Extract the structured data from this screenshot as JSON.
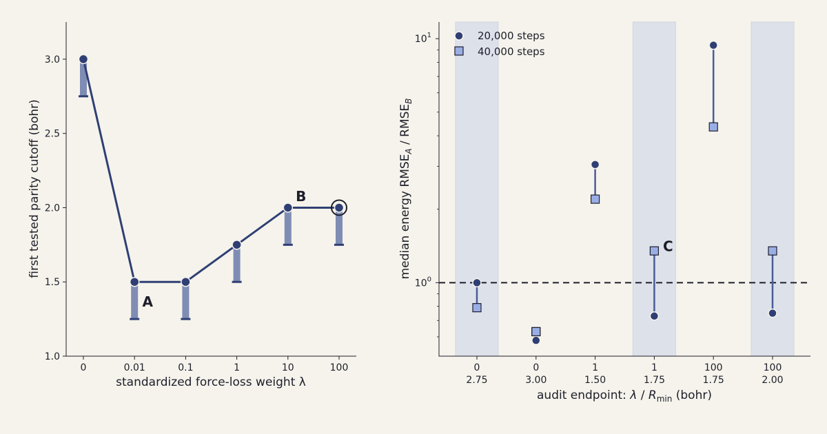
{
  "colors": {
    "background": "#f5f3eb",
    "series_20k": "#2f3f74",
    "series_40k_fill": "#9aaee6",
    "bar_fill": "#7f8db4",
    "shade": "#dde1ea",
    "text": "#1e1e2a"
  },
  "chart_data": [
    {
      "type": "line",
      "xlabel": "standardized force-loss weight  λ",
      "ylabel": "first tested parity cutoff  (bohr)",
      "categories": [
        "0",
        "0.01",
        "0.1",
        "1",
        "10",
        "100"
      ],
      "y_ticks": [
        "1.0",
        "1.5",
        "2.0",
        "2.5",
        "3.0"
      ],
      "ylim": [
        1.0,
        3.25
      ],
      "grid": false,
      "series": [
        {
          "values": [
            3.0,
            1.5,
            1.5,
            1.75,
            2.0,
            2.0
          ]
        }
      ],
      "bars": [
        {
          "x": "0",
          "from": 3.0,
          "to": 2.75
        },
        {
          "x": "0.01",
          "from": 1.5,
          "to": 1.25
        },
        {
          "x": "0.1",
          "from": 1.5,
          "to": 1.25
        },
        {
          "x": "1",
          "from": 1.75,
          "to": 1.5
        },
        {
          "x": "10",
          "from": 2.0,
          "to": 1.75
        },
        {
          "x": "100",
          "from": 2.0,
          "to": 1.75
        }
      ],
      "annotations": [
        {
          "text": "A",
          "x": "0.01",
          "y": 1.37
        },
        {
          "text": "B",
          "x": "10",
          "y": 2.08
        }
      ],
      "highlight": {
        "x": "100",
        "y": 2.0
      }
    },
    {
      "type": "scatter",
      "xlabel_parts": {
        "prefix": "audit endpoint:  ",
        "lambda": "λ",
        "sep": "  /  ",
        "r": "R",
        "r_sub": "min",
        "suffix": " (bohr)"
      },
      "ylabel_parts": {
        "prefix": "median energy RMSE",
        "sub_a": "A",
        "mid": " / RMSE",
        "sub_b": "B"
      },
      "y_scale": "log",
      "ylim": [
        0.5,
        11.7
      ],
      "y_ticks": [
        {
          "base": "10",
          "exp": "1",
          "value": 10
        },
        {
          "base": "10",
          "exp": "0",
          "value": 1
        }
      ],
      "reference_line": 1.0,
      "grid": false,
      "legend": "top-left",
      "categories": [
        {
          "lambda": "0",
          "rmin": "2.75"
        },
        {
          "lambda": "0",
          "rmin": "3.00"
        },
        {
          "lambda": "1",
          "rmin": "1.50"
        },
        {
          "lambda": "1",
          "rmin": "1.75"
        },
        {
          "lambda": "100",
          "rmin": "1.75"
        },
        {
          "lambda": "100",
          "rmin": "2.00"
        }
      ],
      "shaded_categories": [
        0,
        3,
        5
      ],
      "series": [
        {
          "name": "20,000 steps",
          "marker": "circle",
          "values": [
            1.0,
            0.58,
            3.05,
            0.73,
            9.4,
            0.75
          ]
        },
        {
          "name": "40,000 steps",
          "marker": "square",
          "values": [
            0.79,
            0.63,
            2.2,
            1.35,
            4.35,
            1.35
          ]
        }
      ],
      "annotations": [
        {
          "text": "C",
          "category": 3,
          "y": 1.42
        }
      ]
    }
  ]
}
